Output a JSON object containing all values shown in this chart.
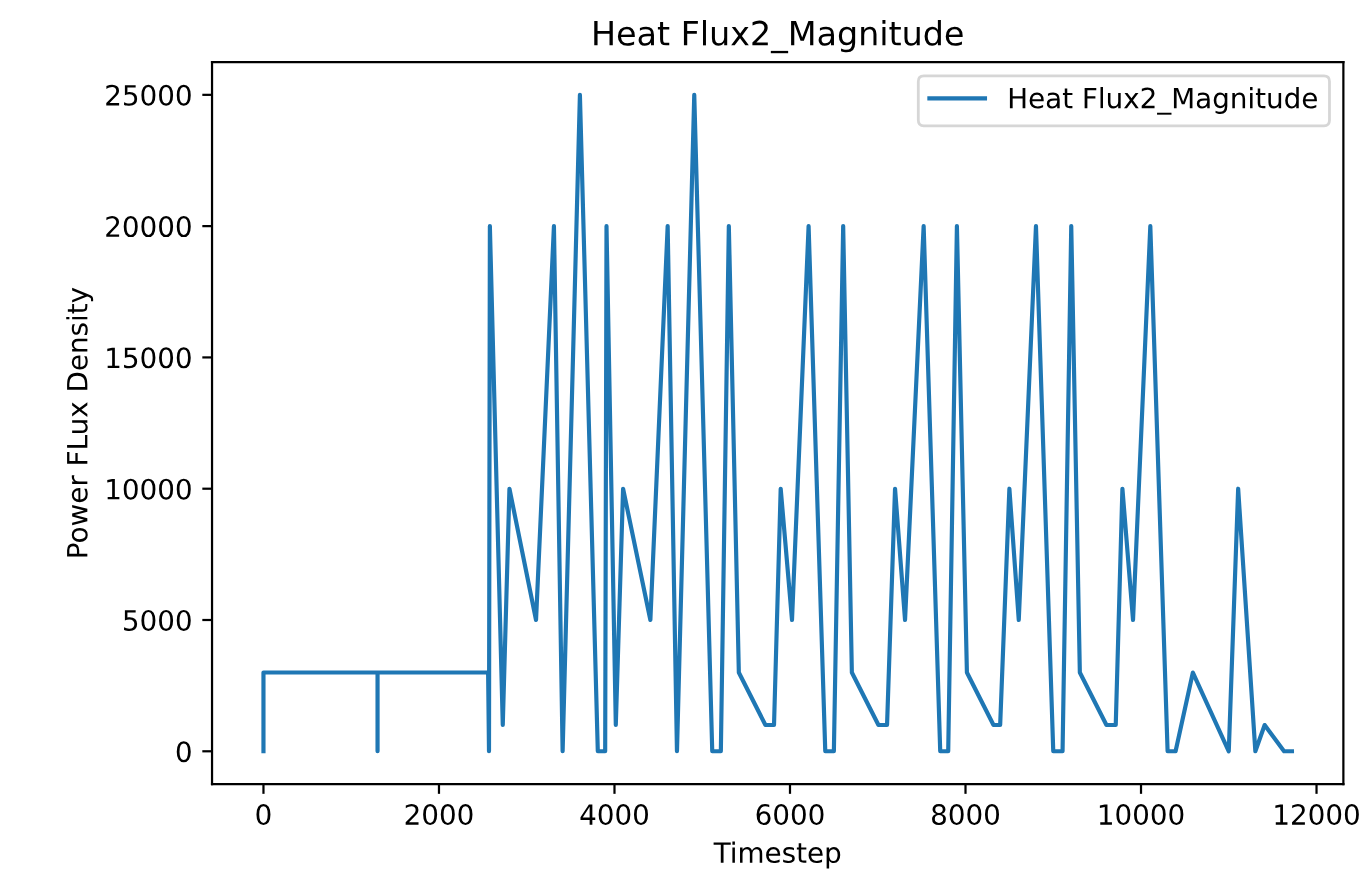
{
  "chart_data": {
    "type": "line",
    "title": "Heat Flux2_Magnitude",
    "xlabel": "Timestep",
    "ylabel": "Power FLux Density",
    "legend": "top right",
    "grid": false,
    "xlim": [
      -586,
      12306
    ],
    "ylim": [
      -1250,
      26250
    ],
    "xticks": [
      0,
      2000,
      4000,
      6000,
      8000,
      10000,
      12000
    ],
    "yticks": [
      0,
      5000,
      10000,
      15000,
      20000,
      25000
    ],
    "series": [
      {
        "name": "Heat Flux2_Magnitude",
        "color": "#1f77b4",
        "x": [
          0,
          0,
          1300,
          1300,
          1300,
          2560,
          2570,
          2580,
          2727,
          2803,
          3106,
          3310,
          3409,
          3606,
          3810,
          3894,
          3909,
          4015,
          4098,
          4409,
          4606,
          4712,
          4909,
          5114,
          5212,
          5303,
          5417,
          5720,
          5818,
          5894,
          6023,
          6212,
          6402,
          6500,
          6606,
          6705,
          7008,
          7106,
          7197,
          7311,
          7523,
          7712,
          7803,
          7902,
          8016,
          8319,
          8395,
          8500,
          8607,
          8803,
          9000,
          9106,
          9205,
          9303,
          9606,
          9712,
          9788,
          9909,
          10106,
          10303,
          10394,
          10591,
          11000,
          11107,
          11303,
          11409,
          11630,
          11720
        ],
        "values": [
          0,
          3000,
          3000,
          0,
          3000,
          3000,
          0,
          20000,
          1000,
          10000,
          5000,
          20000,
          0,
          25000,
          0,
          0,
          20000,
          1000,
          10000,
          5000,
          20000,
          0,
          25000,
          0,
          0,
          20000,
          3000,
          1000,
          1000,
          10000,
          5000,
          20000,
          0,
          0,
          20000,
          3000,
          1000,
          1000,
          10000,
          5000,
          20000,
          0,
          0,
          20000,
          3000,
          1000,
          1000,
          10000,
          5000,
          20000,
          0,
          0,
          20000,
          3000,
          1000,
          1000,
          10000,
          5000,
          20000,
          0,
          0,
          3000,
          0,
          10000,
          0,
          1000,
          0,
          0
        ]
      }
    ]
  }
}
